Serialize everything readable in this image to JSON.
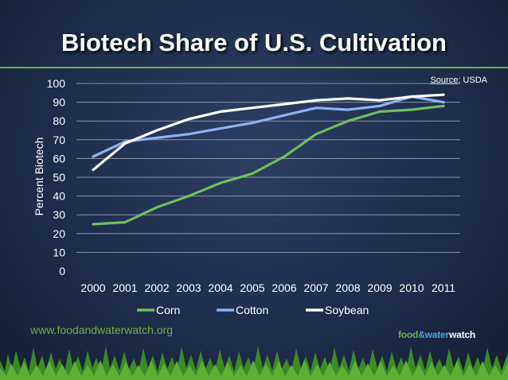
{
  "title": "Biotech Share of U.S. Cultivation",
  "source": {
    "label": "Source",
    "value": ": USDA"
  },
  "website": "www.foodandwaterwatch.org",
  "logo": {
    "part1": "food",
    "part2": "&water",
    "part3": "watch"
  },
  "colors": {
    "corn": "#6ec05a",
    "cotton": "#8ab4f0",
    "soybean": "#ffffff",
    "accent_green": "#6db33f",
    "grid": "#8a93a6"
  },
  "chart_data": {
    "type": "line",
    "title": "Biotech Share of U.S. Cultivation",
    "xlabel": "",
    "ylabel": "Percent Biotech",
    "ylim": [
      0,
      100
    ],
    "yticks": [
      0,
      10,
      20,
      30,
      40,
      50,
      60,
      70,
      80,
      90,
      100
    ],
    "x": [
      "2000",
      "2001",
      "2002",
      "2003",
      "2004",
      "2005",
      "2006",
      "2007",
      "2008",
      "2009",
      "2010",
      "2011"
    ],
    "grid": true,
    "legend": "bottom",
    "series": [
      {
        "name": "Corn",
        "color": "#6ec05a",
        "values": [
          25,
          26,
          34,
          40,
          47,
          52,
          61,
          73,
          80,
          85,
          86,
          88
        ]
      },
      {
        "name": "Cotton",
        "color": "#8ab4f0",
        "values": [
          61,
          69,
          71,
          73,
          76,
          79,
          83,
          87,
          86,
          88,
          93,
          90
        ]
      },
      {
        "name": "Soybean",
        "color": "#ffffff",
        "values": [
          54,
          68,
          75,
          81,
          85,
          87,
          89,
          91,
          92,
          91,
          93,
          94
        ]
      }
    ]
  }
}
